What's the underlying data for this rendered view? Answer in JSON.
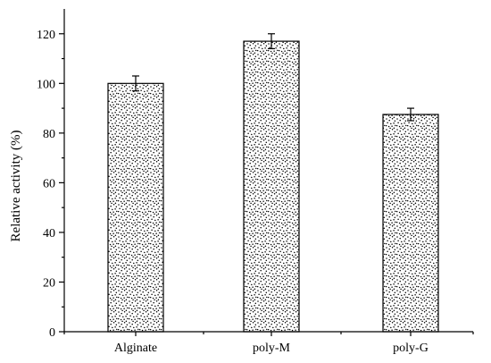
{
  "chart_data": {
    "type": "bar",
    "title": "",
    "xlabel": "",
    "ylabel": "Relative activity (%)",
    "categories": [
      "Alginate",
      "poly-M",
      "poly-G"
    ],
    "values": [
      100,
      117,
      87.5
    ],
    "errors": [
      3,
      3,
      2.5
    ],
    "ylim": [
      0,
      130
    ],
    "yticks": [
      0,
      20,
      40,
      60,
      80,
      100,
      120
    ],
    "grid": false,
    "legend": "none",
    "bar_fill": "stipple",
    "colors": {
      "bar_dots": "#000000",
      "bar_background": "#ffffff",
      "axis": "#000000"
    }
  }
}
